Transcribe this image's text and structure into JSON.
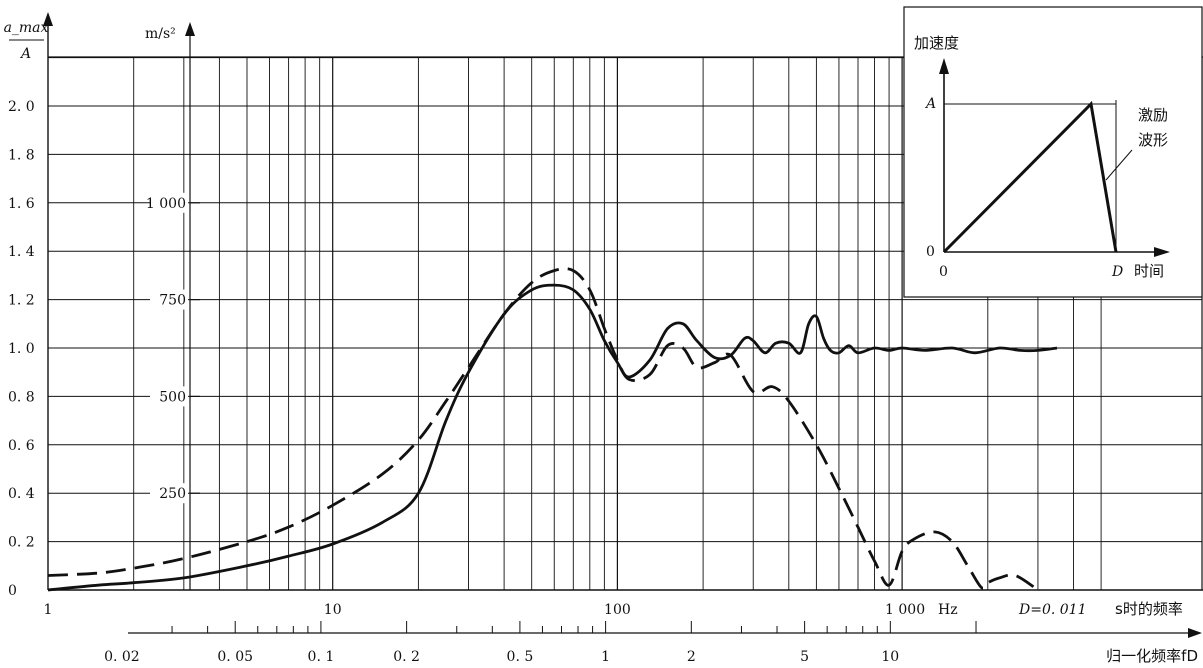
{
  "chart_data": {
    "type": "line",
    "title": "",
    "main_x_axis": {
      "scale": "log",
      "tick_labels": [
        "1",
        "10",
        "100",
        "1 000"
      ],
      "unit": "Hz",
      "note_prefix": "D=0. 011",
      "note_suffix": "s时的频率",
      "xlim": [
        1,
        5000
      ]
    },
    "normalized_x_axis": {
      "scale": "log",
      "label": "归一化频率fD",
      "tick_labels": [
        "0. 02",
        "0. 05",
        "0. 1",
        "0. 2",
        "0. 5",
        "1",
        "2",
        "5",
        "10"
      ]
    },
    "left_y_axis": {
      "label_num": "a_max",
      "label_den": "A",
      "tick_labels": [
        "0",
        "0. 2",
        "0. 4",
        "0. 6",
        "0. 8",
        "1. 0",
        "1. 2",
        "1. 4",
        "1. 6",
        "1. 8",
        "2. 0"
      ],
      "ylim": [
        0,
        2.2
      ]
    },
    "right_y_axis": {
      "unit": "m/s²",
      "tick_labels": [
        "250",
        "500",
        "750",
        "1 000"
      ]
    },
    "series": [
      {
        "style": "solid",
        "x": [
          1,
          1.5,
          2,
          3,
          5,
          7,
          10,
          15,
          20,
          25,
          30,
          40,
          50,
          60,
          70,
          80,
          90,
          100,
          110,
          130,
          150,
          170,
          190,
          220,
          250,
          280,
          300,
          330,
          360,
          400,
          440,
          470,
          500,
          530,
          560,
          600,
          650,
          700,
          800,
          900,
          1000,
          1200,
          1500,
          1800,
          2200,
          2600,
          3000,
          3500
        ],
        "y": [
          0.0,
          0.02,
          0.03,
          0.05,
          0.1,
          0.14,
          0.19,
          0.28,
          0.4,
          0.7,
          0.9,
          1.14,
          1.24,
          1.26,
          1.24,
          1.16,
          1.03,
          0.94,
          0.88,
          0.95,
          1.08,
          1.1,
          1.03,
          0.96,
          0.97,
          1.04,
          1.03,
          0.98,
          1.02,
          1.02,
          0.98,
          1.1,
          1.13,
          1.04,
          0.99,
          0.98,
          1.01,
          0.98,
          1.0,
          0.99,
          1.0,
          0.99,
          1.0,
          0.98,
          1.0,
          0.99,
          0.99,
          1.0
        ]
      },
      {
        "style": "dashed",
        "x": [
          1,
          1.5,
          2,
          3,
          5,
          7,
          10,
          15,
          20,
          25,
          30,
          40,
          50,
          60,
          70,
          80,
          90,
          100,
          110,
          130,
          150,
          170,
          190,
          220,
          250,
          300,
          350,
          400,
          500,
          600,
          700,
          800,
          900,
          1000,
          1100,
          1300,
          1500,
          1700,
          1900,
          2000,
          2200,
          2500,
          3000
        ],
        "y": [
          0.06,
          0.07,
          0.09,
          0.13,
          0.2,
          0.26,
          0.35,
          0.48,
          0.62,
          0.78,
          0.92,
          1.14,
          1.27,
          1.32,
          1.32,
          1.24,
          1.08,
          0.95,
          0.87,
          0.89,
          1.01,
          1.0,
          0.92,
          0.94,
          0.97,
          0.82,
          0.84,
          0.78,
          0.6,
          0.42,
          0.26,
          0.12,
          0.02,
          0.16,
          0.21,
          0.24,
          0.2,
          0.1,
          0.01,
          0.03,
          0.05,
          0.06,
          0.0
        ]
      }
    ],
    "inset": {
      "y_label": "加速度",
      "x_label": "时间",
      "tick_A": "A",
      "tick_0y": "0",
      "tick_0x": "0",
      "tick_D": "D",
      "annotation": [
        "激励",
        "波形"
      ]
    },
    "colors": {
      "ink": "#111111",
      "background": "#ffffff"
    }
  }
}
